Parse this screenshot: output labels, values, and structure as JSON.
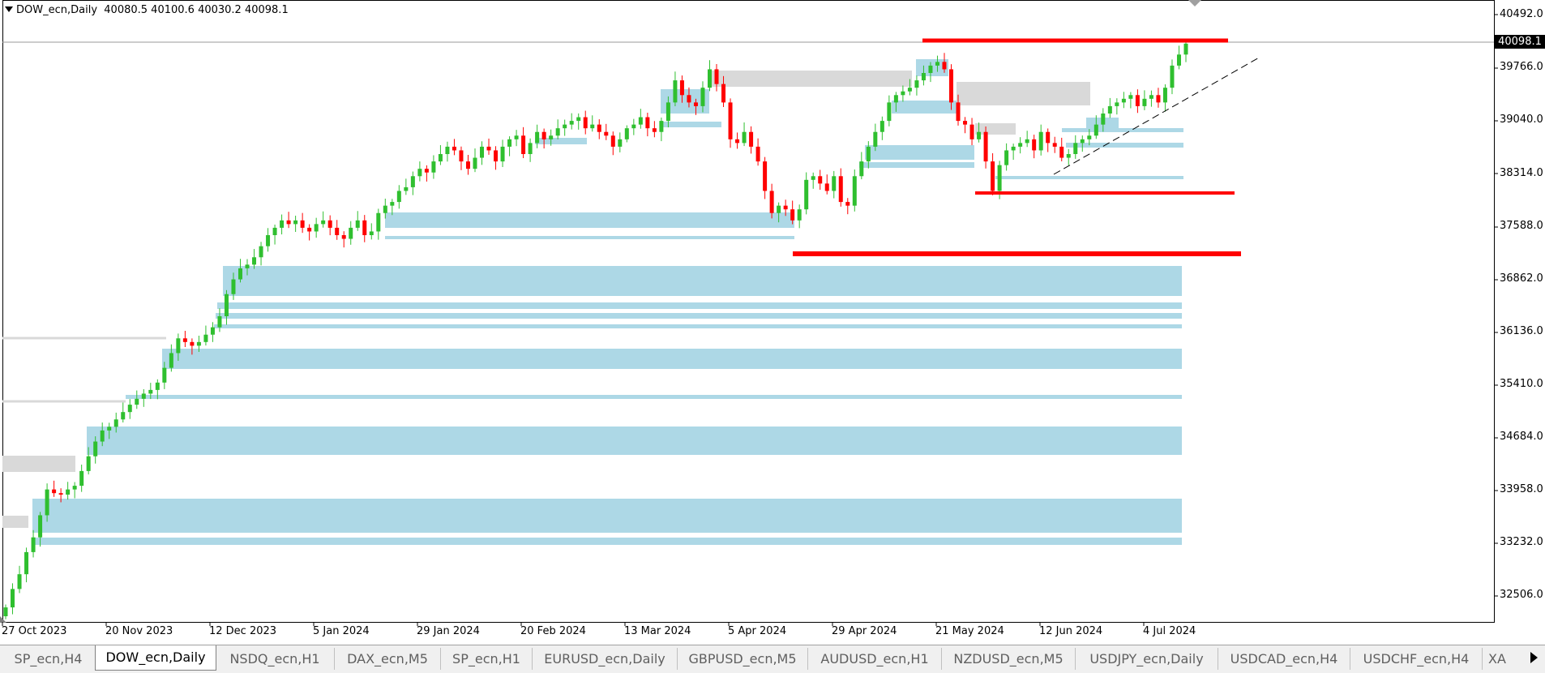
{
  "header": {
    "symbol": "DOW_ecn,Daily",
    "ohlc": "40080.5 40100.6 40030.2 40098.1"
  },
  "current_price": "40098.1",
  "y_axis_labels": [
    "40492.0",
    "39766.0",
    "39040.0",
    "38314.0",
    "37588.0",
    "36862.0",
    "36136.0",
    "35410.0",
    "34684.0",
    "33958.0",
    "33232.0",
    "32506.0"
  ],
  "x_axis_labels": [
    "27 Oct 2023",
    "20 Nov 2023",
    "12 Dec 2023",
    "5 Jan 2024",
    "29 Jan 2024",
    "20 Feb 2024",
    "13 Mar 2024",
    "5 Apr 2024",
    "29 Apr 2024",
    "21 May 2024",
    "12 Jun 2024",
    "4 Jul 2024"
  ],
  "colors": {
    "bull": "#2fbf2f",
    "bear": "#ff0000",
    "zone_blue": "#add8e6",
    "zone_gray": "#d9d9d9",
    "level_red": "#ff0000"
  },
  "tabs": [
    "SP_ecn,H4",
    "DOW_ecn,Daily",
    "NSDQ_ecn,H1",
    "DAX_ecn,M5",
    "SP_ecn,H1",
    "EURUSD_ecn,Daily",
    "GBPUSD_ecn,M5",
    "AUDUSD_ecn,H1",
    "NZDUSD_ecn,M5",
    "USDJPY_ecn,Daily",
    "USDCAD_ecn,H4",
    "USDCHF_ecn,H4",
    "XA"
  ],
  "active_tab": "DOW_ecn,Daily",
  "chart_data": {
    "type": "candlestick",
    "symbol": "DOW_ecn",
    "timeframe": "Daily",
    "ylim": [
      32300,
      40650
    ],
    "current_price": 40098.1,
    "horizontal_levels": [
      40102,
      38069,
      37240
    ],
    "closes_approx": [
      32450,
      32700,
      32900,
      33200,
      33400,
      33700,
      34050,
      34000,
      33980,
      34050,
      34100,
      34300,
      34500,
      34700,
      34850,
      34900,
      35000,
      35100,
      35200,
      35280,
      35350,
      35400,
      35500,
      35700,
      35900,
      36100,
      36050,
      36000,
      36050,
      36150,
      36250,
      36400,
      36700,
      36900,
      37050,
      37100,
      37200,
      37350,
      37500,
      37600,
      37700,
      37650,
      37700,
      37600,
      37550,
      37650,
      37700,
      37600,
      37500,
      37450,
      37600,
      37700,
      37500,
      37550,
      37800,
      37900,
      37950,
      38100,
      38150,
      38300,
      38400,
      38350,
      38500,
      38600,
      38700,
      38650,
      38500,
      38400,
      38550,
      38700,
      38650,
      38500,
      38700,
      38800,
      38850,
      38600,
      38750,
      38900,
      38800,
      38850,
      38950,
      39000,
      39050,
      39100,
      38950,
      39000,
      38900,
      38850,
      38700,
      38800,
      38950,
      39000,
      39100,
      38950,
      38900,
      39050,
      39300,
      39600,
      39400,
      39300,
      39250,
      39500,
      39750,
      39550,
      39300,
      38800,
      38750,
      38900,
      38700,
      38500,
      38100,
      37800,
      37900,
      37850,
      37700,
      37850,
      38250,
      38300,
      38200,
      38100,
      38300,
      37950,
      37900,
      38300,
      38500,
      38700,
      38900,
      39050,
      39300,
      39400,
      39450,
      39500,
      39600,
      39700,
      39800,
      39850,
      39750,
      39300,
      39050,
      39000,
      38800,
      38900,
      38500,
      38100,
      38450,
      38650,
      38700,
      38750,
      38800,
      38650,
      38900,
      38750,
      38700,
      38550,
      38600,
      38750,
      38800,
      38850,
      39000,
      39150,
      39250,
      39300,
      39350,
      39400,
      39250,
      39350,
      39400,
      39300,
      39500,
      39800,
      39950,
      40098
    ]
  }
}
